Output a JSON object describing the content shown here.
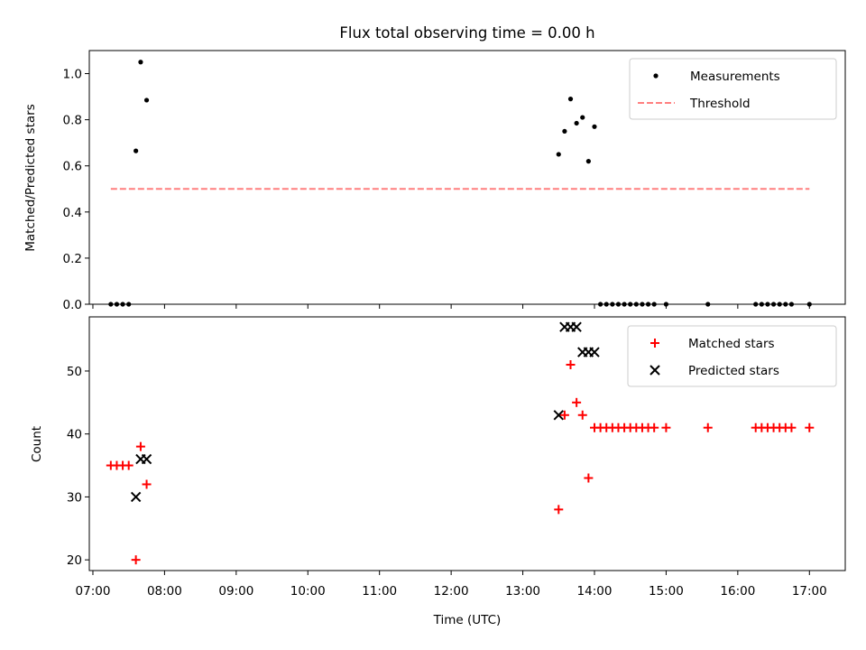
{
  "chart_data": [
    {
      "type": "scatter",
      "title": "Flux total observing time = 0.00 h",
      "xlabel": "",
      "ylabel": "Matched/Predicted stars",
      "ylim": [
        0,
        1.1
      ],
      "yticks": [
        "0.0",
        "0.2",
        "0.4",
        "0.6",
        "0.8",
        "1.0"
      ],
      "grid": false,
      "legend_position": "top-right",
      "series": [
        {
          "name": "Measurements",
          "kind": "points",
          "color": "#000000",
          "points": [
            [
              "07:15",
              0
            ],
            [
              "07:20",
              0
            ],
            [
              "07:25",
              0
            ],
            [
              "07:30",
              0
            ],
            [
              "07:36",
              0.665
            ],
            [
              "07:40",
              1.05
            ],
            [
              "07:45",
              0.885
            ],
            [
              "13:30",
              0.65
            ],
            [
              "13:35",
              0.75
            ],
            [
              "13:40",
              0.89
            ],
            [
              "13:45",
              0.785
            ],
            [
              "13:50",
              0.81
            ],
            [
              "13:55",
              0.62
            ],
            [
              "14:00",
              0.77
            ],
            [
              "14:05",
              0
            ],
            [
              "14:10",
              0
            ],
            [
              "14:15",
              0
            ],
            [
              "14:20",
              0
            ],
            [
              "14:25",
              0
            ],
            [
              "14:30",
              0
            ],
            [
              "14:35",
              0
            ],
            [
              "14:40",
              0
            ],
            [
              "14:45",
              0
            ],
            [
              "14:50",
              0
            ],
            [
              "15:00",
              0
            ],
            [
              "15:35",
              0
            ],
            [
              "16:15",
              0
            ],
            [
              "16:20",
              0
            ],
            [
              "16:25",
              0
            ],
            [
              "16:30",
              0
            ],
            [
              "16:35",
              0
            ],
            [
              "16:40",
              0
            ],
            [
              "16:45",
              0
            ],
            [
              "17:00",
              0
            ]
          ]
        },
        {
          "name": "Threshold",
          "kind": "dashed-line",
          "color": "#ff7f7f",
          "points": [
            [
              "07:15",
              0.5
            ],
            [
              "17:00",
              0.5
            ]
          ]
        }
      ]
    },
    {
      "type": "scatter",
      "title": "",
      "xlabel": "Time (UTC)",
      "ylabel": "Count",
      "ylim": [
        18.3,
        58.6
      ],
      "yticks": [
        "20",
        "30",
        "40",
        "50"
      ],
      "xlim": [
        "06:57",
        "17:30"
      ],
      "xticks": [
        "07:00",
        "08:00",
        "09:00",
        "10:00",
        "11:00",
        "12:00",
        "13:00",
        "14:00",
        "15:00",
        "16:00",
        "17:00"
      ],
      "grid": false,
      "legend_position": "top-right",
      "series": [
        {
          "name": "Matched stars",
          "marker": "plus",
          "color": "#ff0000",
          "points": [
            [
              "07:15",
              35
            ],
            [
              "07:20",
              35
            ],
            [
              "07:25",
              35
            ],
            [
              "07:30",
              35
            ],
            [
              "07:36",
              20
            ],
            [
              "07:40",
              38
            ],
            [
              "07:45",
              32
            ],
            [
              "13:30",
              28
            ],
            [
              "13:35",
              43
            ],
            [
              "13:40",
              51
            ],
            [
              "13:45",
              45
            ],
            [
              "13:50",
              43
            ],
            [
              "13:55",
              33
            ],
            [
              "14:00",
              41
            ],
            [
              "14:05",
              41
            ],
            [
              "14:10",
              41
            ],
            [
              "14:15",
              41
            ],
            [
              "14:20",
              41
            ],
            [
              "14:25",
              41
            ],
            [
              "14:30",
              41
            ],
            [
              "14:35",
              41
            ],
            [
              "14:40",
              41
            ],
            [
              "14:45",
              41
            ],
            [
              "14:50",
              41
            ],
            [
              "15:00",
              41
            ],
            [
              "15:35",
              41
            ],
            [
              "16:15",
              41
            ],
            [
              "16:20",
              41
            ],
            [
              "16:25",
              41
            ],
            [
              "16:30",
              41
            ],
            [
              "16:35",
              41
            ],
            [
              "16:40",
              41
            ],
            [
              "16:45",
              41
            ],
            [
              "17:00",
              41
            ]
          ]
        },
        {
          "name": "Predicted stars",
          "marker": "x",
          "color": "#000000",
          "points": [
            [
              "07:36",
              30
            ],
            [
              "07:40",
              36
            ],
            [
              "07:45",
              36
            ],
            [
              "13:30",
              43
            ],
            [
              "13:35",
              57
            ],
            [
              "13:40",
              57
            ],
            [
              "13:45",
              57
            ],
            [
              "13:50",
              53
            ],
            [
              "13:55",
              53
            ],
            [
              "14:00",
              53
            ]
          ]
        }
      ]
    }
  ]
}
